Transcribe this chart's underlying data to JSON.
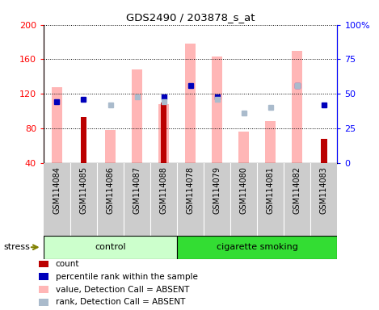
{
  "title": "GDS2490 / 203878_s_at",
  "samples": [
    "GSM114084",
    "GSM114085",
    "GSM114086",
    "GSM114087",
    "GSM114088",
    "GSM114078",
    "GSM114079",
    "GSM114080",
    "GSM114081",
    "GSM114082",
    "GSM114083"
  ],
  "n_control": 5,
  "n_smoking": 6,
  "pink_bar_values": [
    128,
    0,
    78,
    148,
    108,
    178,
    163,
    76,
    88,
    170,
    0
  ],
  "red_bar_values": [
    0,
    93,
    0,
    0,
    110,
    0,
    0,
    0,
    0,
    0,
    68
  ],
  "blue_sq_values": [
    44,
    46,
    0,
    0,
    48,
    56,
    48,
    0,
    0,
    56,
    42
  ],
  "lb_sq_values": [
    0,
    0,
    42,
    48,
    44,
    0,
    46,
    36,
    40,
    56,
    0
  ],
  "ylim_left": [
    40,
    200
  ],
  "ylim_right": [
    0,
    100
  ],
  "yticks_left": [
    40,
    80,
    120,
    160,
    200
  ],
  "yticks_right": [
    0,
    25,
    50,
    75,
    100
  ],
  "color_pink": "#FFB6B6",
  "color_red": "#BB0000",
  "color_blue": "#0000BB",
  "color_light_blue": "#AABBCC",
  "color_control_bg": "#CCFFCC",
  "color_smoking_bg": "#33DD33",
  "color_bar_bg": "#CCCCCC",
  "stress_label": "stress",
  "control_label": "control",
  "smoking_label": "cigarette smoking",
  "legend_items": [
    "count",
    "percentile rank within the sample",
    "value, Detection Call = ABSENT",
    "rank, Detection Call = ABSENT"
  ],
  "legend_colors": [
    "#BB0000",
    "#0000BB",
    "#FFB6B6",
    "#AABBCC"
  ],
  "bar_width": 0.4,
  "red_bar_width": 0.22,
  "sq_marker_size": 5
}
